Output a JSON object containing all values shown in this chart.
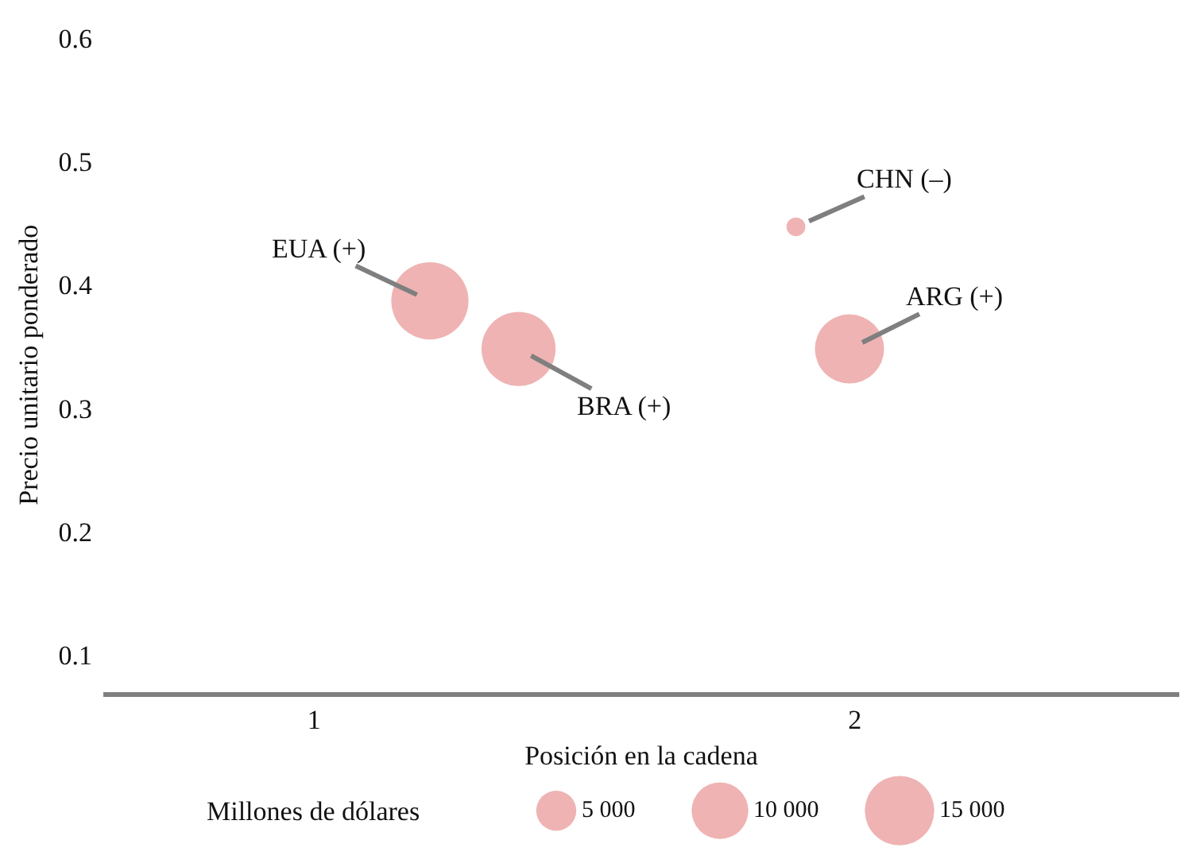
{
  "chart_data": {
    "type": "bubble",
    "xlabel": "Posición en la cadena",
    "ylabel": "Precio unitario ponderado",
    "legend_title": "Millones de dólares",
    "series": [
      {
        "color": "#efb3b3",
        "x": [
          1.214,
          1.378,
          1.891,
          1.99
        ],
        "values": [
          0.387,
          0.348,
          0.447,
          0.348
        ],
        "sizes": [
          18600,
          17100,
          1100,
          14900
        ]
      }
    ],
    "size_legend": [
      {
        "value": 5000,
        "label": "5 000"
      },
      {
        "value": 10000,
        "label": "10 000"
      },
      {
        "value": 15000,
        "label": "15 000"
      }
    ],
    "annotations": [
      {
        "text": "EUA (+)",
        "x": 1.214,
        "y": 0.387
      },
      {
        "text": "BRA (+)",
        "x": 1.378,
        "y": 0.348
      },
      {
        "text": "CHN (–)",
        "x": 1.891,
        "y": 0.447
      },
      {
        "text": "ARG (+)",
        "x": 1.99,
        "y": 0.348
      }
    ],
    "xlim": [
      0.61,
      2.6
    ],
    "xticks": [
      1,
      2
    ],
    "ylim": [
      0.07,
      0.6
    ],
    "yticks": [
      0.1,
      0.2,
      0.3,
      0.4,
      0.5,
      0.6
    ]
  }
}
